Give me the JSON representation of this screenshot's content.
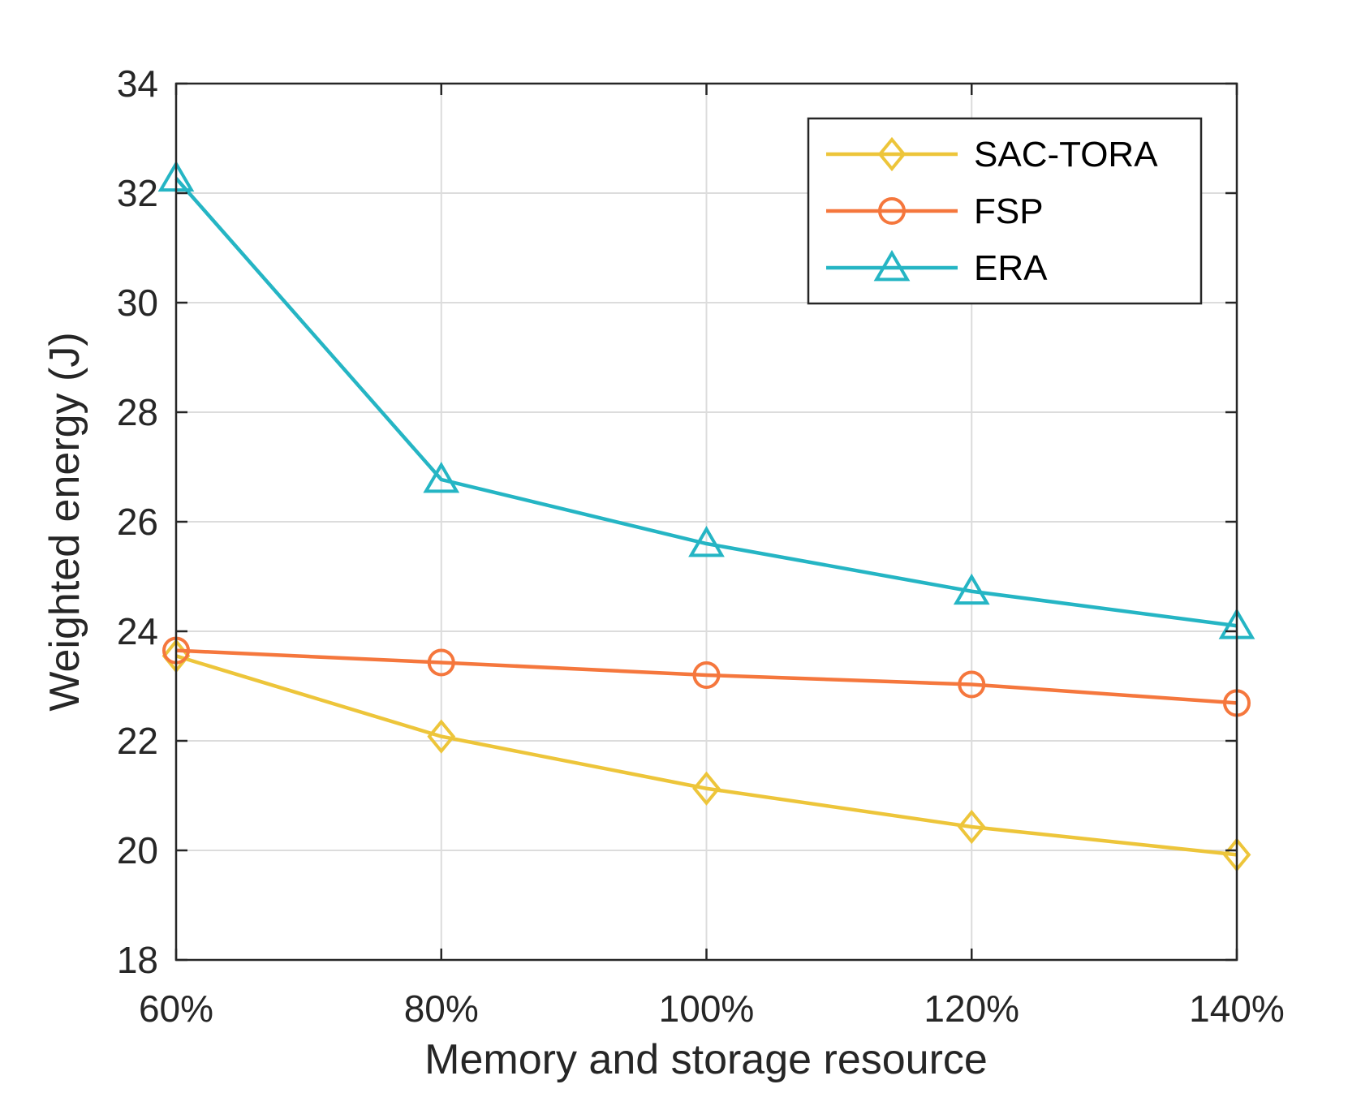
{
  "chart_data": {
    "type": "line",
    "title": "",
    "xlabel": "Memory and storage resource",
    "ylabel": "Weighted energy (J)",
    "categories": [
      "60%",
      "80%",
      "100%",
      "120%",
      "140%"
    ],
    "ylim": [
      18,
      34
    ],
    "yticks": [
      18,
      20,
      22,
      24,
      26,
      28,
      30,
      32,
      34
    ],
    "grid": true,
    "legend_position": "top-right",
    "series": [
      {
        "name": "SAC-TORA",
        "color": "#EDC53A",
        "marker": "diamond",
        "values": [
          23.55,
          22.08,
          21.13,
          20.43,
          19.92
        ]
      },
      {
        "name": "FSP",
        "color": "#F5773D",
        "marker": "circle",
        "values": [
          23.65,
          23.43,
          23.2,
          23.03,
          22.69
        ]
      },
      {
        "name": "ERA",
        "color": "#25B5C4",
        "marker": "triangle",
        "values": [
          32.27,
          26.77,
          25.6,
          24.73,
          24.1
        ]
      }
    ]
  }
}
